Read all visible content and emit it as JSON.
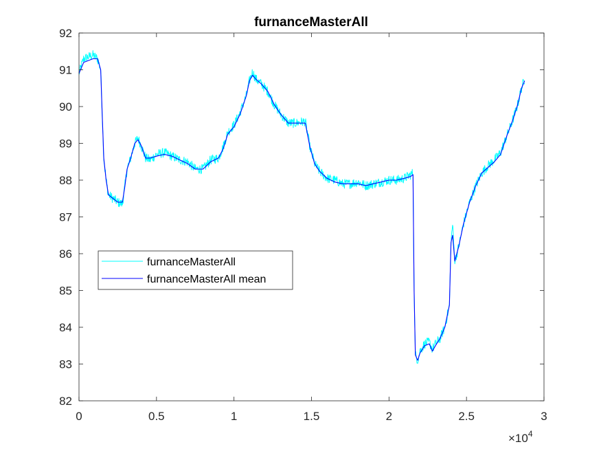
{
  "chart_data": {
    "type": "line",
    "title": "furnanceMasterAll",
    "xlabel": "",
    "ylabel": "",
    "xlim": [
      0,
      30000
    ],
    "ylim": [
      82,
      92
    ],
    "x_exponent_label": "×10",
    "x_exponent_power": "4",
    "x_ticks": [
      0,
      5000,
      10000,
      15000,
      20000,
      25000,
      30000
    ],
    "x_tick_labels": [
      "0",
      "0.5",
      "1",
      "1.5",
      "2",
      "2.5",
      "3"
    ],
    "y_ticks": [
      82,
      83,
      84,
      85,
      86,
      87,
      88,
      89,
      90,
      91,
      92
    ],
    "y_tick_labels": [
      "82",
      "83",
      "84",
      "85",
      "86",
      "87",
      "88",
      "89",
      "90",
      "91",
      "92"
    ],
    "grid": false,
    "legend_position": "left",
    "series": [
      {
        "name": "furnanceMasterAll",
        "color": "#00ffff",
        "x": [
          0,
          300,
          600,
          900,
          1200,
          1400,
          1500,
          1600,
          1750,
          1900,
          2200,
          2500,
          2800,
          2950,
          3100,
          3300,
          3600,
          3800,
          4000,
          4300,
          4600,
          5000,
          5500,
          6000,
          6500,
          7000,
          7500,
          8000,
          8500,
          9000,
          9300,
          9600,
          10000,
          10400,
          10800,
          11000,
          11200,
          11400,
          11800,
          12200,
          12600,
          13000,
          13500,
          14000,
          14600,
          14900,
          15200,
          15500,
          16000,
          16500,
          17000,
          17500,
          18000,
          18500,
          19000,
          19500,
          20000,
          20500,
          21000,
          21400,
          21550,
          21620,
          21700,
          21850,
          22000,
          22300,
          22600,
          22800,
          23000,
          23300,
          23600,
          23900,
          24000,
          24100,
          24250,
          24500,
          24800,
          25200,
          25600,
          26000,
          26400,
          26800,
          27200,
          27600,
          28000,
          28300,
          28550,
          28750
        ],
        "y": [
          90.9,
          91.3,
          91.35,
          91.4,
          91.3,
          91.0,
          89.8,
          88.6,
          88.0,
          87.6,
          87.5,
          87.4,
          87.35,
          87.8,
          88.3,
          88.55,
          89.0,
          89.15,
          88.95,
          88.6,
          88.55,
          88.7,
          88.75,
          88.65,
          88.55,
          88.5,
          88.3,
          88.3,
          88.55,
          88.6,
          88.9,
          89.3,
          89.5,
          89.85,
          90.3,
          90.7,
          90.95,
          90.75,
          90.6,
          90.4,
          90.05,
          89.8,
          89.55,
          89.55,
          89.6,
          88.9,
          88.45,
          88.25,
          88.05,
          88.0,
          87.9,
          87.9,
          87.95,
          87.85,
          87.9,
          87.95,
          88.0,
          88.0,
          88.05,
          88.15,
          88.2,
          85.0,
          83.25,
          83.1,
          83.35,
          83.55,
          83.6,
          83.4,
          83.55,
          83.7,
          84.0,
          84.6,
          86.3,
          86.8,
          85.8,
          86.2,
          86.8,
          87.4,
          87.85,
          88.2,
          88.4,
          88.55,
          88.75,
          89.2,
          89.65,
          90.05,
          90.5,
          90.75
        ],
        "noise": 0.13
      },
      {
        "name": "furnanceMasterAll mean",
        "color": "#0000ff",
        "x": [
          0,
          300,
          600,
          900,
          1200,
          1400,
          1500,
          1600,
          1750,
          1900,
          2200,
          2500,
          2800,
          2950,
          3100,
          3300,
          3600,
          3800,
          4000,
          4300,
          4600,
          5000,
          5500,
          6000,
          6500,
          7000,
          7500,
          8000,
          8500,
          9000,
          9300,
          9600,
          10000,
          10400,
          10800,
          11000,
          11200,
          11400,
          11800,
          12200,
          12600,
          13000,
          13500,
          14000,
          14600,
          14900,
          15200,
          15500,
          16000,
          16500,
          17000,
          17500,
          18000,
          18500,
          19000,
          19500,
          20000,
          20500,
          21000,
          21400,
          21550,
          21620,
          21700,
          21850,
          22000,
          22300,
          22600,
          22800,
          23000,
          23300,
          23600,
          23900,
          24000,
          24100,
          24250,
          24500,
          24800,
          25200,
          25600,
          26000,
          26400,
          26800,
          27200,
          27600,
          28000,
          28300,
          28550,
          28750
        ],
        "y": [
          90.9,
          91.2,
          91.25,
          91.3,
          91.3,
          91.0,
          89.8,
          88.6,
          88.0,
          87.6,
          87.5,
          87.4,
          87.4,
          87.8,
          88.3,
          88.55,
          89.0,
          89.1,
          88.95,
          88.6,
          88.6,
          88.65,
          88.7,
          88.65,
          88.55,
          88.45,
          88.3,
          88.3,
          88.5,
          88.6,
          88.85,
          89.25,
          89.45,
          89.8,
          90.3,
          90.7,
          90.85,
          90.75,
          90.6,
          90.4,
          90.05,
          89.8,
          89.55,
          89.55,
          89.55,
          88.9,
          88.45,
          88.25,
          88.05,
          87.95,
          87.9,
          87.9,
          87.9,
          87.85,
          87.9,
          87.95,
          88.0,
          88.0,
          88.05,
          88.1,
          88.15,
          85.0,
          83.25,
          83.1,
          83.3,
          83.5,
          83.55,
          83.35,
          83.5,
          83.7,
          84.0,
          84.6,
          86.3,
          86.5,
          85.8,
          86.2,
          86.8,
          87.4,
          87.85,
          88.2,
          88.35,
          88.5,
          88.7,
          89.2,
          89.65,
          90.05,
          90.5,
          90.7
        ]
      }
    ]
  }
}
